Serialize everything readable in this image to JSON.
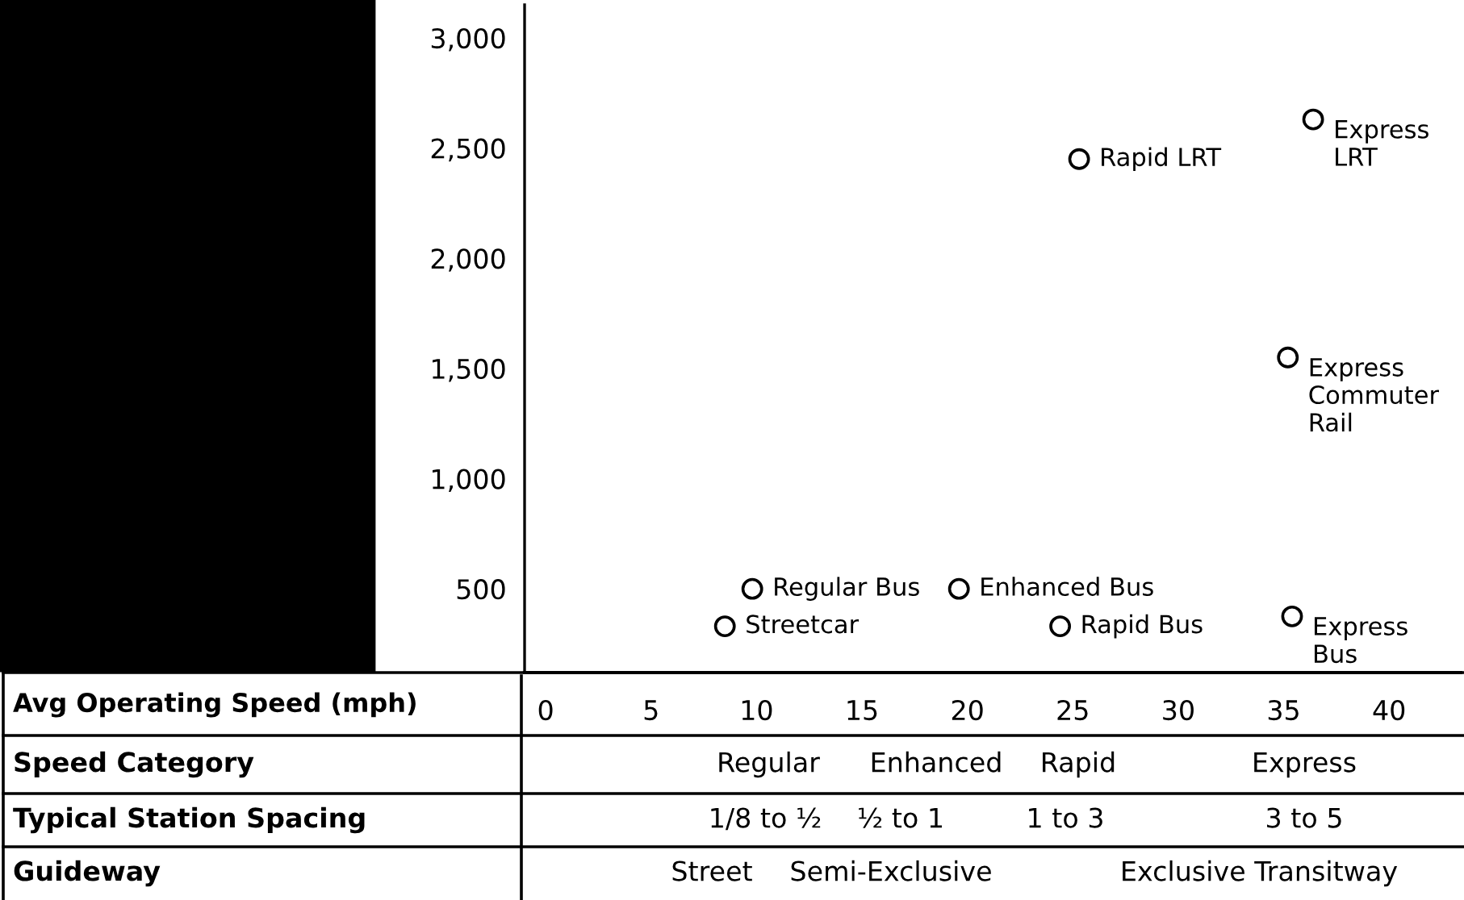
{
  "chart_data": {
    "type": "scatter",
    "xlabel": "Avg Operating Speed (mph)",
    "series": [
      {
        "color": "#000000",
        "x": [
          8.5,
          9.8,
          19.6,
          24.4,
          25.3,
          35.4,
          35.2,
          36.4
        ],
        "values": [
          330,
          500,
          500,
          330,
          2450,
          375,
          1550,
          2630
        ]
      }
    ],
    "marker": "circle",
    "xlim": [
      -1,
      43.4
    ],
    "xticks": [
      0,
      5,
      10,
      15,
      20,
      25,
      30,
      35,
      40
    ],
    "ylim": [
      120,
      3150
    ],
    "yticks": [
      500,
      {
        "value": 1000,
        "label": "1,000"
      },
      {
        "value": 1500,
        "label": "1,500"
      },
      {
        "value": 2000,
        "label": "2,000"
      },
      {
        "value": 2500,
        "label": "2,500"
      },
      {
        "value": 3000,
        "label": "3,000"
      }
    ],
    "grid": false,
    "annotations": [
      {
        "text": "Streetcar",
        "x": 8.5,
        "y": 330
      },
      {
        "text": "Regular Bus",
        "x": 9.8,
        "y": 500
      },
      {
        "text": "Enhanced Bus",
        "x": 19.6,
        "y": 500
      },
      {
        "text": "Rapid Bus",
        "x": 24.4,
        "y": 330
      },
      {
        "text": "Rapid LRT",
        "x": 25.3,
        "y": 2450
      },
      {
        "text": "Express\nBus",
        "x": 35.4,
        "y": 375
      },
      {
        "text": "Express\nCommuter\nRail",
        "x": 35.2,
        "y": 1550
      },
      {
        "text": "Express\nLRT",
        "x": 36.4,
        "y": 2630
      },
      "Speed Category",
      "Regular",
      "Enhanced",
      "Rapid",
      "Express",
      "Typical Station Spacing",
      "1/8 to ½",
      "½ to 1",
      "1 to 3",
      "3 to 5",
      "Guideway",
      "Street",
      "Semi-Exclusive",
      "Exclusive Transitway"
    ]
  }
}
